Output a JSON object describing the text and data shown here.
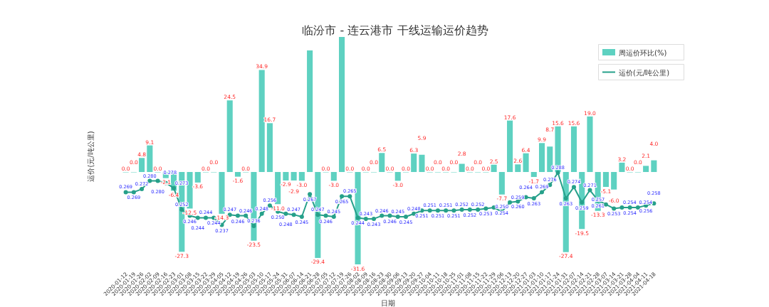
{
  "chart_data": {
    "type": "bar",
    "title": "临汾市 - 连云港市 干线运输运价趋势",
    "xlabel": "日期",
    "ylabel": "运价(元/吨公里)",
    "categories": [
      "2020-01-12",
      "2020-01-19",
      "2020-01-26",
      "2020-02-02",
      "2020-02-09",
      "2020-02-16",
      "2020-02-23",
      "2020-03-01",
      "2020-03-08",
      "2020-03-15",
      "2020-03-22",
      "2020-03-29",
      "2020-04-05",
      "2020-04-12",
      "2020-04-19",
      "2020-04-26",
      "2020-05-03",
      "2020-05-10",
      "2020-05-17",
      "2020-05-24",
      "2020-05-31",
      "2020-06-07",
      "2020-06-14",
      "2020-06-21",
      "2020-06-28",
      "2020-07-05",
      "2020-07-12",
      "2020-07-19",
      "2020-07-26",
      "2020-08-02",
      "2020-08-09",
      "2020-08-16",
      "2020-08-23",
      "2020-08-30",
      "2020-09-06",
      "2020-09-13",
      "2020-09-20",
      "2020-09-27",
      "2020-10-04",
      "2020-10-11",
      "2020-10-18",
      "2020-10-25",
      "2020-11-01",
      "2020-11-08",
      "2020-11-15",
      "2020-11-22",
      "2020-11-29",
      "2020-12-06",
      "2020-12-13",
      "2020-12-20",
      "2020-12-27",
      "2021-01-03",
      "2021-01-10",
      "2021-01-17",
      "2021-01-24",
      "2021-01-31",
      "2021-02-07",
      "2021-02-14",
      "2021-02-21",
      "2021-02-28",
      "2021-03-07",
      "2021-03-14",
      "2021-03-21",
      "2021-03-28",
      "2021-04-04",
      "2021-04-11",
      "2021-04-18"
    ],
    "series": [
      {
        "name": "周运价环比(%)",
        "color": "#5ed1c1",
        "values": [
          0.0,
          0.0,
          4.8,
          9.1,
          0.0,
          -2.1,
          -6.4,
          -27.3,
          -12.5,
          -3.6,
          0.0,
          0.0,
          -14.3,
          24.5,
          -1.6,
          0.0,
          -23.5,
          34.9,
          16.7,
          -11.0,
          -2.9,
          -2.9,
          -3.0,
          41.6,
          -29.4,
          0.0,
          -3.0,
          46.2,
          0.0,
          -31.6,
          0.0,
          0.0,
          6.5,
          0.0,
          -3.0,
          0.0,
          6.3,
          5.9,
          0.0,
          0.0,
          0.0,
          0.0,
          2.8,
          0.0,
          0.0,
          0.0,
          2.5,
          -7.7,
          17.6,
          2.6,
          6.4,
          -1.7,
          9.9,
          8.7,
          15.6,
          -27.4,
          15.6,
          -19.5,
          19.0,
          -13.3,
          -5.1,
          -6.0,
          3.2,
          0.0,
          0.0,
          2.1,
          4.0
        ],
        "value_labels": [
          "0.0",
          "0.0",
          "4.8",
          "9.1",
          "0.0",
          "-2.1",
          "-6.4",
          "-27.3",
          "-12.5",
          "-3.6",
          "0.0",
          "0.0",
          "-14.3",
          "24.5",
          "-1.6",
          "0.0",
          "-23.5",
          "34.9",
          "16.7",
          "-11.0",
          "-2.9",
          "-2.9",
          "-3.0",
          null,
          "-29.4",
          "0.0",
          "-3.0",
          null,
          "0.0",
          "-31.6",
          "0.0",
          "0.0",
          "6.5",
          "0.0",
          "-3.0",
          "0.0",
          "6.3",
          "5.9",
          "0.0",
          "0.0",
          "0.0",
          "0.0",
          "2.8",
          "0.0",
          "0.0",
          "0.0",
          "2.5",
          "-7.7",
          "17.6",
          "2.6",
          "6.4",
          "-1.7",
          "9.9",
          "8.7",
          "15.6",
          "-27.4",
          "15.6",
          "-19.5",
          "19.0",
          "-13.3",
          "-5.1",
          "-6.0",
          "3.2",
          "0.0",
          "0.0",
          "2.1",
          "4.0"
        ]
      },
      {
        "name": "运价(元/吨公里)",
        "type": "line",
        "axis": "y2",
        "color": "#26a08a",
        "values": [
          0.269,
          0.269,
          0.272,
          0.28,
          0.28,
          0.278,
          0.273,
          0.252,
          0.246,
          0.244,
          0.244,
          0.244,
          0.237,
          0.247,
          0.246,
          0.246,
          0.236,
          0.248,
          0.256,
          0.25,
          0.248,
          0.247,
          0.245,
          0.267,
          0.247,
          0.246,
          0.245,
          0.265,
          0.265,
          0.244,
          0.243,
          0.243,
          0.246,
          0.246,
          0.245,
          0.245,
          0.248,
          0.251,
          0.251,
          0.251,
          0.251,
          0.251,
          0.252,
          0.252,
          0.252,
          0.253,
          0.254,
          0.25,
          0.259,
          0.26,
          0.264,
          0.263,
          0.269,
          0.276,
          0.288,
          0.263,
          0.274,
          0.259,
          0.271,
          0.261,
          0.257,
          0.253,
          0.254,
          0.254,
          0.254,
          0.256,
          0.258
        ],
        "value_labels": [
          "0.269",
          "0.269",
          "0.272",
          "0.280",
          "0.280",
          "0.278",
          "0.273",
          "0.252",
          "0.246",
          "0.244",
          "0.244",
          "0.244",
          "0.237",
          "0.247",
          "0.246",
          "0.246",
          "0.236",
          "0.248",
          "0.256",
          "0.250",
          "0.248",
          "0.247",
          "0.245",
          "0.267",
          "0.247",
          "0.246",
          "0.245",
          "0.265",
          "0.265",
          "0.244",
          "0.243",
          "0.243",
          "0.246",
          "0.246",
          "0.245",
          "0.245",
          "0.248",
          "0.251",
          "0.251",
          "0.251",
          "0.251",
          "0.251",
          "0.252",
          "0.252",
          "0.252",
          "0.253",
          "0.254",
          "0.250",
          "0.259",
          "0.260",
          "0.264",
          "0.263",
          "0.269",
          "0.276",
          "0.288",
          "0.263",
          "0.274",
          "0.259",
          "0.271",
          "0.261",
          "0.257",
          "0.253",
          "0.254",
          "0.254",
          "0.254",
          "0.256",
          "0.258"
        ]
      }
    ],
    "marker": "circle",
    "legend": "top right",
    "grid": false
  }
}
